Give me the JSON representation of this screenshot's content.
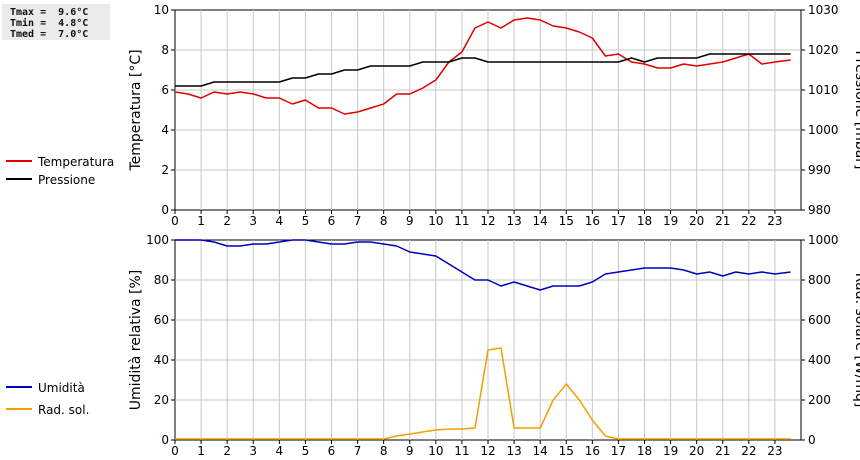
{
  "stats": {
    "tmax": "Tmax =  9.6°C",
    "tmin": "Tmin =  4.8°C",
    "tmed": "Tmed =  7.0°C"
  },
  "chart_data": [
    {
      "type": "line",
      "title": "",
      "xlabel": "",
      "x_ticks": [
        "0",
        "1",
        "2",
        "3",
        "4",
        "5",
        "6",
        "7",
        "8",
        "9",
        "10",
        "11",
        "12",
        "13",
        "14",
        "15",
        "16",
        "17",
        "18",
        "19",
        "20",
        "21",
        "22",
        "23"
      ],
      "xlim": [
        0,
        24
      ],
      "grid": true,
      "legend_position": "left",
      "left_axis": {
        "label": "Temperatura [°C]",
        "ylim": [
          0,
          10
        ],
        "ticks": [
          "0",
          "2",
          "4",
          "6",
          "8",
          "10"
        ]
      },
      "right_axis": {
        "label": "Pressione [mbar]",
        "ylim": [
          980,
          1030
        ],
        "ticks": [
          "980",
          "990",
          "1000",
          "1010",
          "1020",
          "1030"
        ]
      },
      "series": [
        {
          "name": "Temperatura",
          "axis": "left",
          "color": "#e00000",
          "x": [
            0,
            0.5,
            1,
            1.5,
            2,
            2.5,
            3,
            3.5,
            4,
            4.5,
            5,
            5.5,
            6,
            6.5,
            7,
            7.5,
            8,
            8.5,
            9,
            9.5,
            10,
            10.5,
            11,
            11.5,
            12,
            12.5,
            13,
            13.5,
            14,
            14.5,
            15,
            15.5,
            16,
            16.5,
            17,
            17.5,
            18,
            18.5,
            19,
            19.5,
            20,
            20.5,
            21,
            21.5,
            22,
            22.5,
            23,
            23.6
          ],
          "y": [
            5.9,
            5.8,
            5.6,
            5.9,
            5.8,
            5.9,
            5.8,
            5.6,
            5.6,
            5.3,
            5.5,
            5.1,
            5.1,
            4.8,
            4.9,
            5.1,
            5.3,
            5.8,
            5.8,
            6.1,
            6.5,
            7.4,
            7.9,
            9.1,
            9.4,
            9.1,
            9.5,
            9.6,
            9.5,
            9.2,
            9.1,
            8.9,
            8.6,
            7.7,
            7.8,
            7.4,
            7.3,
            7.1,
            7.1,
            7.3,
            7.2,
            7.3,
            7.4,
            7.6,
            7.8,
            7.3,
            7.4,
            7.5
          ]
        },
        {
          "name": "Pressione",
          "axis": "right",
          "color": "#000000",
          "x": [
            0,
            1,
            1.5,
            2,
            3,
            3.5,
            4,
            4.5,
            5,
            5.5,
            6,
            6.5,
            7,
            7.5,
            8,
            8.5,
            9,
            9.5,
            10,
            10.5,
            11,
            11.5,
            12,
            13,
            14,
            15,
            16,
            17,
            17.5,
            18,
            18.5,
            19,
            20,
            20.5,
            21,
            22,
            23,
            23.6
          ],
          "y": [
            1011,
            1011,
            1012,
            1012,
            1012,
            1012,
            1012,
            1013,
            1013,
            1014,
            1014,
            1015,
            1015,
            1016,
            1016,
            1016,
            1016,
            1017,
            1017,
            1017,
            1018,
            1018,
            1017,
            1017,
            1017,
            1017,
            1017,
            1017,
            1018,
            1017,
            1018,
            1018,
            1018,
            1019,
            1019,
            1019,
            1019,
            1019
          ]
        }
      ]
    },
    {
      "type": "line",
      "title": "",
      "xlabel": "",
      "x_ticks": [
        "0",
        "1",
        "2",
        "3",
        "4",
        "5",
        "6",
        "7",
        "8",
        "9",
        "10",
        "11",
        "12",
        "13",
        "14",
        "15",
        "16",
        "17",
        "18",
        "19",
        "20",
        "21",
        "22",
        "23"
      ],
      "xlim": [
        0,
        24
      ],
      "grid": true,
      "legend_position": "left",
      "left_axis": {
        "label": "Umidità relativa [%]",
        "ylim": [
          0,
          100
        ],
        "ticks": [
          "0",
          "20",
          "40",
          "60",
          "80",
          "100"
        ]
      },
      "right_axis": {
        "label": "Rad. solare [W/mq]",
        "ylim": [
          0,
          1000
        ],
        "ticks": [
          "0",
          "200",
          "400",
          "600",
          "800",
          "1000"
        ]
      },
      "series": [
        {
          "name": "Umidità",
          "axis": "left",
          "color": "#0000c0",
          "x": [
            0,
            1,
            1.5,
            2,
            2.5,
            3,
            3.5,
            4,
            4.5,
            5,
            5.5,
            6,
            6.5,
            7,
            7.5,
            8,
            8.5,
            9,
            9.5,
            10,
            10.5,
            11,
            11.5,
            12,
            12.5,
            13,
            13.5,
            14,
            14.5,
            15,
            15.5,
            16,
            16.5,
            17,
            17.5,
            18,
            18.5,
            19,
            19.5,
            20,
            20.5,
            21,
            21.5,
            22,
            22.5,
            23,
            23.6
          ],
          "y": [
            100,
            100,
            99,
            97,
            97,
            98,
            98,
            99,
            100,
            100,
            99,
            98,
            98,
            99,
            99,
            98,
            97,
            94,
            93,
            92,
            88,
            84,
            80,
            80,
            77,
            79,
            77,
            75,
            77,
            77,
            77,
            79,
            83,
            84,
            85,
            86,
            86,
            86,
            85,
            83,
            84,
            82,
            84,
            83,
            84,
            83,
            84
          ]
        },
        {
          "name": "Rad. sol.",
          "axis": "right",
          "color": "#f0a000",
          "x": [
            0,
            1,
            2,
            3,
            4,
            5,
            6,
            7,
            8,
            8.5,
            9,
            9.5,
            10,
            10.5,
            11,
            11.5,
            12,
            12.5,
            13,
            13.5,
            14,
            14.5,
            15,
            15.5,
            16,
            16.5,
            17,
            18,
            19,
            20,
            21,
            22,
            23,
            23.6
          ],
          "y": [
            5,
            5,
            5,
            5,
            5,
            5,
            5,
            5,
            5,
            20,
            30,
            40,
            50,
            55,
            55,
            60,
            450,
            460,
            60,
            60,
            60,
            200,
            280,
            200,
            100,
            20,
            5,
            5,
            5,
            5,
            5,
            5,
            5,
            5
          ]
        }
      ]
    }
  ]
}
